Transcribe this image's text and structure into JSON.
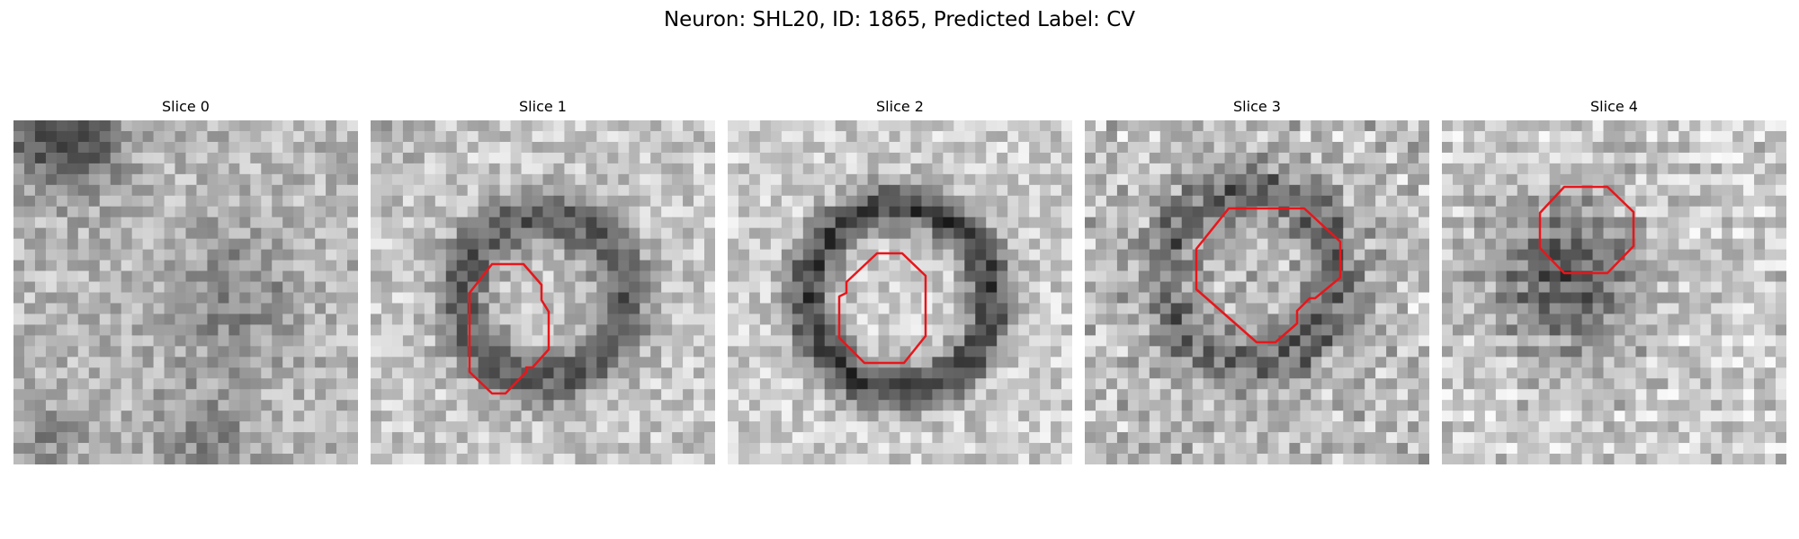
{
  "figure": {
    "title": "Neuron: SHL20, ID: 1865, Predicted Label: CV"
  },
  "panels": [
    {
      "title": "Slice 0"
    },
    {
      "title": "Slice 1"
    },
    {
      "title": "Slice 2"
    },
    {
      "title": "Slice 3"
    },
    {
      "title": "Slice 4"
    }
  ],
  "style": {
    "contour_color": "#e8161b",
    "colormap": "gray"
  }
}
